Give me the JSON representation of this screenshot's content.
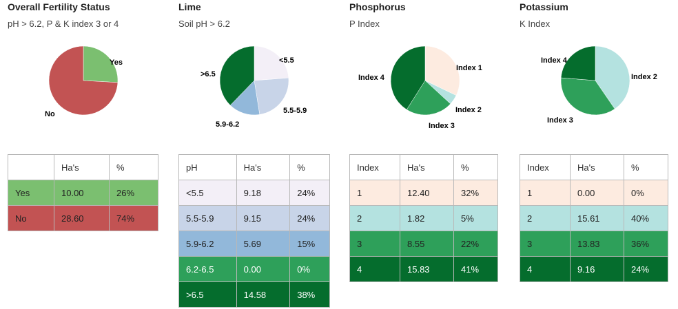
{
  "chart_data": [
    {
      "type": "pie",
      "title": "Overall Fertility Status",
      "subtitle": "pH > 6.2, P & K index 3 or 4",
      "categories": [
        "Yes",
        "No"
      ],
      "values": [
        10.0,
        28.6
      ],
      "colors": [
        "#7bbf70",
        "#c25353"
      ],
      "text_colors": [
        "#222222",
        "#222222"
      ],
      "table": {
        "headers": [
          "",
          "Ha's",
          "%"
        ],
        "rows": [
          [
            "Yes",
            "10.00",
            "26%"
          ],
          [
            "No",
            "28.60",
            "74%"
          ]
        ]
      }
    },
    {
      "type": "pie",
      "title": "Lime",
      "subtitle": "Soil pH > 6.2",
      "categories": [
        "<5.5",
        "5.5-5.9",
        "5.9-6.2",
        "6.2-6.5",
        ">6.5"
      ],
      "values": [
        9.18,
        9.15,
        5.69,
        0.0,
        14.58
      ],
      "colors": [
        "#f3eff7",
        "#c8d4e8",
        "#92b8da",
        "#2ea05a",
        "#056d2d"
      ],
      "text_colors": [
        "#222222",
        "#222222",
        "#222222",
        "#ffffff",
        "#ffffff"
      ],
      "table": {
        "headers": [
          "pH",
          "Ha's",
          "%"
        ],
        "rows": [
          [
            "<5.5",
            "9.18",
            "24%"
          ],
          [
            "5.5-5.9",
            "9.15",
            "24%"
          ],
          [
            "5.9-6.2",
            "5.69",
            "15%"
          ],
          [
            "6.2-6.5",
            "0.00",
            "0%"
          ],
          [
            ">6.5",
            "14.58",
            "38%"
          ]
        ]
      }
    },
    {
      "type": "pie",
      "title": "Phosphorus",
      "subtitle": "P Index",
      "categories": [
        "Index 1",
        "Index 2",
        "Index 3",
        "Index 4"
      ],
      "values": [
        12.4,
        1.82,
        8.55,
        15.83
      ],
      "colors": [
        "#fdebe0",
        "#b4e2e0",
        "#2ea05a",
        "#056d2d"
      ],
      "row_labels": [
        "1",
        "2",
        "3",
        "4"
      ],
      "text_colors": [
        "#222222",
        "#222222",
        "#222222",
        "#ffffff"
      ],
      "table": {
        "headers": [
          "Index",
          "Ha's",
          "%"
        ],
        "rows": [
          [
            "1",
            "12.40",
            "32%"
          ],
          [
            "2",
            "1.82",
            "5%"
          ],
          [
            "3",
            "8.55",
            "22%"
          ],
          [
            "4",
            "15.83",
            "41%"
          ]
        ]
      }
    },
    {
      "type": "pie",
      "title": "Potassium",
      "subtitle": "K Index",
      "categories": [
        "Index 1",
        "Index 2",
        "Index 3",
        "Index 4"
      ],
      "values": [
        0.0,
        15.61,
        13.83,
        9.16
      ],
      "colors": [
        "#fdebe0",
        "#b4e2e0",
        "#2ea05a",
        "#056d2d"
      ],
      "text_colors": [
        "#222222",
        "#222222",
        "#222222",
        "#ffffff"
      ],
      "table": {
        "headers": [
          "Index",
          "Ha's",
          "%"
        ],
        "rows": [
          [
            "1",
            "0.00",
            "0%"
          ],
          [
            "2",
            "15.61",
            "40%"
          ],
          [
            "3",
            "13.83",
            "36%"
          ],
          [
            "4",
            "9.16",
            "24%"
          ]
        ]
      }
    }
  ]
}
